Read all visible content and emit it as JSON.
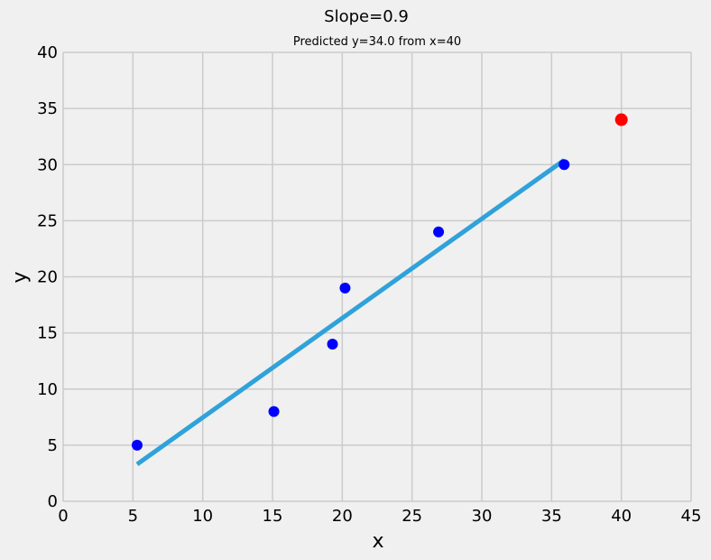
{
  "chart_data": {
    "type": "scatter",
    "title": "Slope=0.9",
    "subtitle": "Predicted y=34.0 from x=40",
    "xlabel": "x",
    "ylabel": "y",
    "xlim": [
      0,
      45
    ],
    "ylim": [
      0,
      40
    ],
    "xticks": [
      "0",
      "5",
      "10",
      "15",
      "20",
      "25",
      "30",
      "35",
      "40",
      "45"
    ],
    "yticks": [
      "0",
      "5",
      "10",
      "15",
      "20",
      "25",
      "30",
      "35",
      "40"
    ],
    "grid": true,
    "points": [
      {
        "x": 5.3,
        "y": 5
      },
      {
        "x": 15.1,
        "y": 8
      },
      {
        "x": 19.3,
        "y": 14
      },
      {
        "x": 20.2,
        "y": 19
      },
      {
        "x": 26.9,
        "y": 24
      },
      {
        "x": 35.9,
        "y": 30
      }
    ],
    "fit_line": {
      "x": [
        5.3,
        35.9
      ],
      "y": [
        3.3,
        30.4
      ]
    },
    "prediction": {
      "x": 40,
      "y": 34.0
    },
    "colors": {
      "points": "#0000ff",
      "fit_line": "#30a2da",
      "prediction": "#ff0000",
      "grid": "#cbcbcb",
      "background": "#f0f0f0"
    }
  }
}
